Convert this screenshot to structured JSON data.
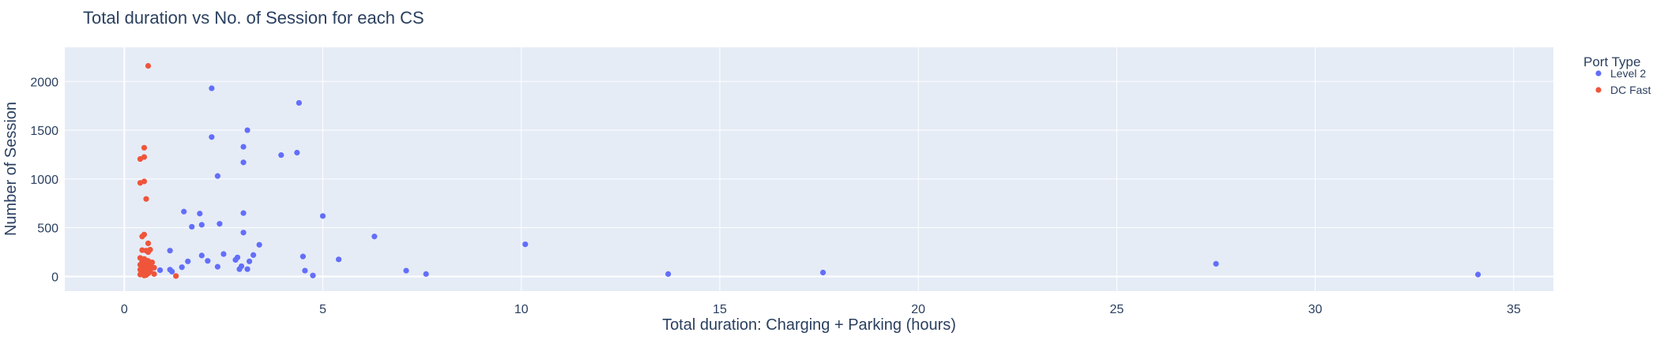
{
  "chart_data": {
    "type": "scatter",
    "title": "Total duration vs No. of Session for each CS",
    "xlabel": "Total duration: Charging + Parking (hours)",
    "ylabel": "Number of Session",
    "xlim": [
      -1.5,
      36.0
    ],
    "ylim": [
      -150,
      2350
    ],
    "xticks": [
      0,
      5,
      10,
      15,
      20,
      25,
      30,
      35
    ],
    "yticks": [
      0,
      500,
      1000,
      1500,
      2000
    ],
    "grid": true,
    "background": "#e5ecf6",
    "legend": {
      "title": "Port Type",
      "placement": "top-right"
    },
    "series": [
      {
        "name": "Level 2",
        "color": "#636efa",
        "points": [
          [
            2.2,
            1930
          ],
          [
            4.4,
            1780
          ],
          [
            3.1,
            1500
          ],
          [
            2.2,
            1430
          ],
          [
            3.0,
            1330
          ],
          [
            4.35,
            1270
          ],
          [
            3.95,
            1245
          ],
          [
            3.0,
            1170
          ],
          [
            2.35,
            1030
          ],
          [
            1.5,
            665
          ],
          [
            1.9,
            645
          ],
          [
            3.0,
            650
          ],
          [
            5.0,
            620
          ],
          [
            2.4,
            540
          ],
          [
            1.7,
            510
          ],
          [
            1.95,
            530
          ],
          [
            3.0,
            450
          ],
          [
            6.3,
            410
          ],
          [
            10.1,
            330
          ],
          [
            3.4,
            325
          ],
          [
            1.15,
            265
          ],
          [
            2.5,
            230
          ],
          [
            3.25,
            220
          ],
          [
            1.95,
            215
          ],
          [
            4.5,
            205
          ],
          [
            2.85,
            195
          ],
          [
            2.1,
            160
          ],
          [
            5.4,
            175
          ],
          [
            1.6,
            155
          ],
          [
            3.15,
            155
          ],
          [
            2.8,
            170
          ],
          [
            1.45,
            95
          ],
          [
            2.35,
            100
          ],
          [
            2.95,
            105
          ],
          [
            2.9,
            75
          ],
          [
            0.9,
            65
          ],
          [
            1.15,
            70
          ],
          [
            1.2,
            50
          ],
          [
            4.55,
            60
          ],
          [
            7.1,
            60
          ],
          [
            27.5,
            130
          ],
          [
            17.6,
            40
          ],
          [
            7.6,
            25
          ],
          [
            13.7,
            25
          ],
          [
            34.1,
            20
          ],
          [
            4.75,
            10
          ],
          [
            3.1,
            75
          ]
        ]
      },
      {
        "name": "DC Fast",
        "color": "#ef553b",
        "points": [
          [
            0.6,
            2160
          ],
          [
            0.5,
            1320
          ],
          [
            0.5,
            1225
          ],
          [
            0.4,
            1205
          ],
          [
            0.5,
            975
          ],
          [
            0.4,
            960
          ],
          [
            0.55,
            795
          ],
          [
            0.5,
            430
          ],
          [
            0.45,
            410
          ],
          [
            0.6,
            340
          ],
          [
            0.45,
            270
          ],
          [
            0.55,
            265
          ],
          [
            0.65,
            275
          ],
          [
            0.6,
            250
          ],
          [
            0.4,
            190
          ],
          [
            0.5,
            180
          ],
          [
            0.55,
            165
          ],
          [
            0.45,
            150
          ],
          [
            0.6,
            160
          ],
          [
            0.7,
            145
          ],
          [
            0.5,
            130
          ],
          [
            0.4,
            120
          ],
          [
            0.55,
            115
          ],
          [
            0.65,
            120
          ],
          [
            0.45,
            95
          ],
          [
            0.6,
            100
          ],
          [
            0.75,
            90
          ],
          [
            0.5,
            80
          ],
          [
            0.4,
            70
          ],
          [
            0.55,
            60
          ],
          [
            0.65,
            55
          ],
          [
            0.5,
            45
          ],
          [
            0.45,
            35
          ],
          [
            0.6,
            30
          ],
          [
            0.75,
            25
          ],
          [
            0.4,
            20
          ],
          [
            0.55,
            15
          ],
          [
            0.5,
            10
          ],
          [
            1.3,
            5
          ],
          [
            0.65,
            85
          ]
        ]
      }
    ]
  }
}
